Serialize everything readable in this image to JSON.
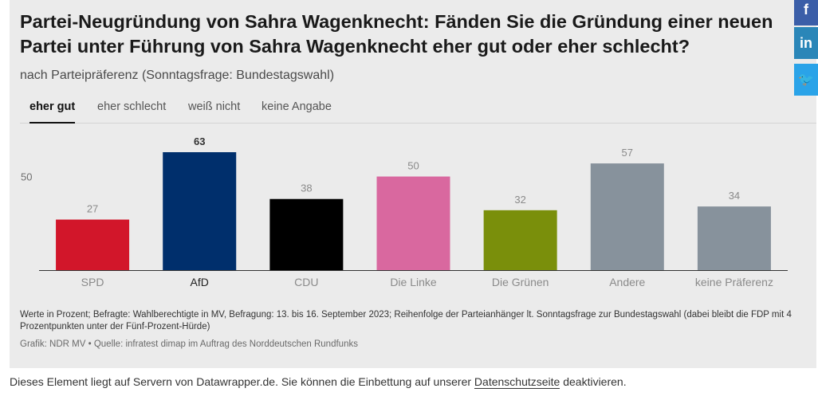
{
  "chart": {
    "title": "Partei-Neugründung von Sahra Wagenknecht: Fänden Sie die Gründung einer neuen Partei unter Führung von Sahra Wagenknecht eher gut oder eher schlecht?",
    "subtitle": "nach Parteipräferenz (Sonntagsfrage: Bundestagswahl)",
    "tabs": [
      "eher gut",
      "eher schlecht",
      "weiß nicht",
      "keine Angabe"
    ],
    "notes": "Werte in Prozent; Befragte: Wahlberechtigte in MV, Befragung: 13. bis 16. September 2023; Reihenfolge der Parteianhänger lt. Sonntagsfrage zur Bundestagswahl (dabei bleibt die FDP mit 4 Prozentpunkten unter der Fünf-Prozent-Hürde)",
    "credit": "Grafik: NDR MV • Quelle: infratest dimap im Auftrag des Norddeutschen Rundfunks"
  },
  "footer": {
    "text_before": "Dieses Element liegt auf Servern von Datawrapper.de. Sie können die Einbettung auf unserer ",
    "link": "Datenschutzseite",
    "text_after": " deaktivieren."
  },
  "social": {
    "facebook": "f",
    "linkedin": "in",
    "twitter": "🐦"
  },
  "chart_data": {
    "type": "bar",
    "title": "Partei-Neugründung von Sahra Wagenknecht: Fänden Sie die Gründung einer neuen Partei unter Führung von Sahra Wagenknecht eher gut oder eher schlecht?",
    "active_tab": "eher gut",
    "categories": [
      "SPD",
      "AfD",
      "CDU",
      "Die Linke",
      "Die Grünen",
      "Andere",
      "keine Präferenz"
    ],
    "values": [
      27,
      63,
      38,
      50,
      32,
      57,
      34
    ],
    "colors": [
      "#d2162a",
      "#002f6c",
      "#000000",
      "#d9689f",
      "#7a8f0b",
      "#87929c",
      "#87929c"
    ],
    "highlight": "AfD",
    "reference_line": 50,
    "reference_label": "50",
    "ylim": [
      0,
      63
    ],
    "xlabel": "",
    "ylabel": ""
  }
}
